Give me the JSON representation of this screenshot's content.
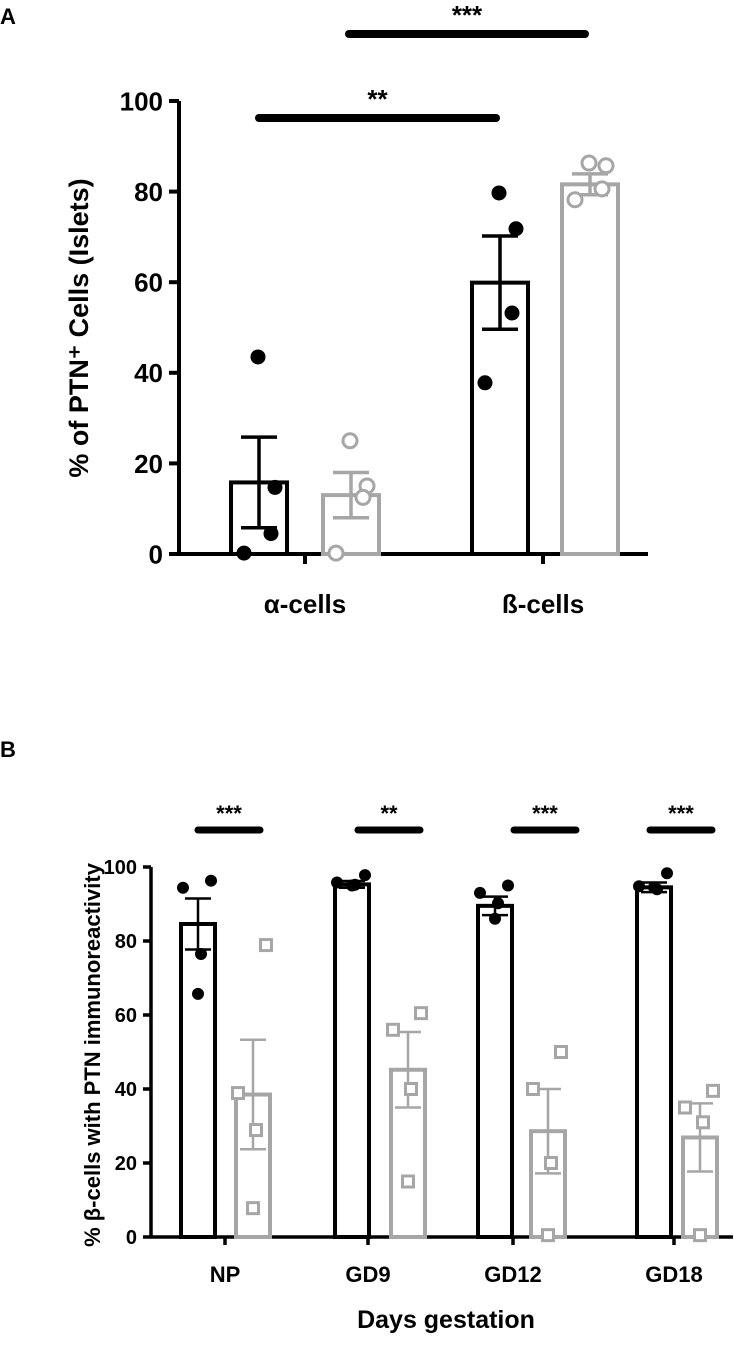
{
  "colors": {
    "series1": "#000000",
    "series2": "#a6a6a6"
  },
  "chart_data": [
    {
      "panel": "A",
      "type": "bar",
      "ylabel": "% of PTN⁺ Cells (Islets)",
      "xlabel": "",
      "ylim": [
        0,
        100
      ],
      "yticks": [
        0,
        20,
        40,
        60,
        80,
        100
      ],
      "categories": [
        "α-cells",
        "ß-cells"
      ],
      "series": [
        {
          "color": "#000000",
          "marker": "filled-circle",
          "values": [
            15.8,
            59.9
          ],
          "sem": [
            10.0,
            10.3
          ],
          "points": [
            [
              43.5,
              14.7,
              4.5,
              0.2
            ],
            [
              79.7,
              71.8,
              53.2,
              37.8
            ]
          ]
        },
        {
          "color": "#a6a6a6",
          "marker": "open-circle",
          "values": [
            13.0,
            81.6
          ],
          "sem": [
            5.0,
            2.3
          ],
          "points": [
            [
              25.0,
              15.0,
              12.5,
              0.2
            ],
            [
              86.3,
              85.7,
              80.6,
              78.2
            ]
          ]
        }
      ],
      "significance": [
        {
          "label": "**",
          "from": [
            0,
            0
          ],
          "to": [
            1,
            0
          ]
        },
        {
          "label": "***",
          "from": [
            0,
            1
          ],
          "to": [
            1,
            1
          ]
        }
      ]
    },
    {
      "panel": "B",
      "type": "bar",
      "ylabel": "% β-cells with PTN immunoreactivity",
      "xlabel": "Days gestation",
      "ylim": [
        0,
        100
      ],
      "yticks": [
        0,
        20,
        40,
        60,
        80,
        100
      ],
      "categories": [
        "NP",
        "GD9",
        "GD12",
        "GD18"
      ],
      "series": [
        {
          "color": "#000000",
          "marker": "filled-circle",
          "values": [
            84.6,
            95.3,
            89.5,
            94.5
          ],
          "sem": [
            6.9,
            0.9,
            2.5,
            1.3
          ],
          "points": [
            [
              96.3,
              94.4,
              76.5,
              65.7
            ],
            [
              97.8,
              95.8,
              95.2,
              95.0
            ],
            [
              95.0,
              93.0,
              90.2,
              86.0
            ],
            [
              98.3,
              94.8,
              94.0,
              94.5
            ]
          ]
        },
        {
          "color": "#a6a6a6",
          "marker": "open-square",
          "values": [
            38.5,
            45.2,
            28.6,
            26.9
          ],
          "sem": [
            14.8,
            10.2,
            11.4,
            9.2
          ],
          "points": [
            [
              78.9,
              38.9,
              28.9,
              7.8
            ],
            [
              60.5,
              56.0,
              40.0,
              15.0
            ],
            [
              50.0,
              40.0,
              20.0,
              0.5
            ],
            [
              39.5,
              35.0,
              31.0,
              0.5
            ]
          ]
        }
      ],
      "significance": [
        {
          "label": "***",
          "group": 0
        },
        {
          "label": "**",
          "group": 1
        },
        {
          "label": "***",
          "group": 2
        },
        {
          "label": "***",
          "group": 3
        }
      ]
    }
  ]
}
